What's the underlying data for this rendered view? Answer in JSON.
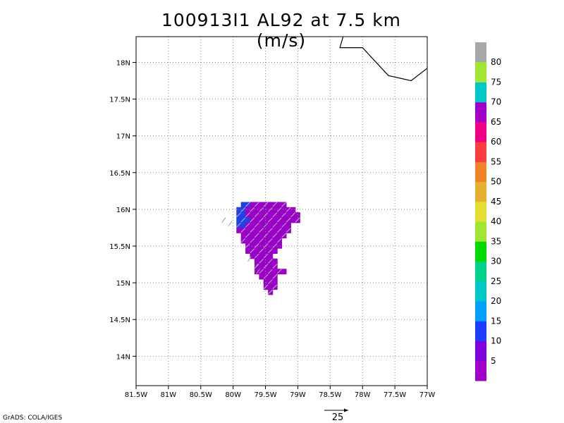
{
  "title": "100913I1 AL92 at 7.5 km (m/s)",
  "credit": "GrADS: COLA/IGES",
  "reference_vector": {
    "label": "25",
    "speed": 25
  },
  "map": {
    "lon_range": [
      -81.5,
      -77.0
    ],
    "lat_range": [
      13.6,
      18.35
    ],
    "lon_ticks": [
      {
        "value": -81.5,
        "label": "81.5W"
      },
      {
        "value": -81.0,
        "label": "81W"
      },
      {
        "value": -80.5,
        "label": "80.5W"
      },
      {
        "value": -80.0,
        "label": "80W"
      },
      {
        "value": -79.5,
        "label": "79.5W"
      },
      {
        "value": -79.0,
        "label": "79W"
      },
      {
        "value": -78.5,
        "label": "78.5W"
      },
      {
        "value": -78.0,
        "label": "78W"
      },
      {
        "value": -77.5,
        "label": "77.5W"
      },
      {
        "value": -77.0,
        "label": "77W"
      }
    ],
    "lat_ticks": [
      {
        "value": 14.0,
        "label": "14N"
      },
      {
        "value": 14.5,
        "label": "14.5N"
      },
      {
        "value": 15.0,
        "label": "15N"
      },
      {
        "value": 15.5,
        "label": "15.5N"
      },
      {
        "value": 16.0,
        "label": "16N"
      },
      {
        "value": 16.5,
        "label": "16.5N"
      },
      {
        "value": 17.0,
        "label": "17N"
      },
      {
        "value": 17.5,
        "label": "17.5N"
      },
      {
        "value": 18.0,
        "label": "18N"
      }
    ],
    "grid": true,
    "coastline": [
      [
        -78.3,
        18.35
      ],
      [
        -78.35,
        18.2
      ],
      [
        -78.0,
        18.2
      ],
      [
        -77.6,
        17.82
      ],
      [
        -77.25,
        17.75
      ],
      [
        -77.0,
        17.92
      ]
    ]
  },
  "wind_field": {
    "lat_start": 16.1,
    "lon_start": -79.95,
    "step": 0.07,
    "rows": [
      ".BBPPPPPPPP...",
      "BBPPPPPPPPPPP.",
      "BBPPPPPPPPPPPP",
      "BBBPPPPPPPPPPP",
      "BBPPPPPPPPPP..",
      "PPPPPPPPPPPP..",
      ".PPPPPPPPPP...",
      ".PPPPPPPPP....",
      "..PPPPPPPP....",
      "..PPPPPPP.....",
      "...PPPPP......",
      "....PPPPP.....",
      "....PPPPP.....",
      "....PPPPPPP...",
      ".....PPPP.....",
      "......PPP.....",
      "......PPP.....",
      ".......P......"
    ],
    "cell_colors": {
      "B": "#2040e8",
      "P": "#9a00c8"
    },
    "barb_color": "#b8b8b8"
  },
  "colorbar": {
    "top_color": "#a8a8a8",
    "bins": [
      {
        "color": "#a000c8",
        "label": "5"
      },
      {
        "color": "#8200dc",
        "label": "10"
      },
      {
        "color": "#1e3cff",
        "label": "15"
      },
      {
        "color": "#00a0ff",
        "label": "20"
      },
      {
        "color": "#00c8c8",
        "label": "25"
      },
      {
        "color": "#00d28c",
        "label": "30"
      },
      {
        "color": "#00dc00",
        "label": "35"
      },
      {
        "color": "#a0e632",
        "label": "40"
      },
      {
        "color": "#e6dc32",
        "label": "45"
      },
      {
        "color": "#e6af2d",
        "label": "50"
      },
      {
        "color": "#f08228",
        "label": "55"
      },
      {
        "color": "#fa3c3c",
        "label": "60"
      },
      {
        "color": "#f00082",
        "label": "65"
      },
      {
        "color": "#a000c8",
        "label": "70"
      },
      {
        "color": "#00c8c8",
        "label": "75"
      },
      {
        "color": "#a0e632",
        "label": "80"
      }
    ]
  }
}
